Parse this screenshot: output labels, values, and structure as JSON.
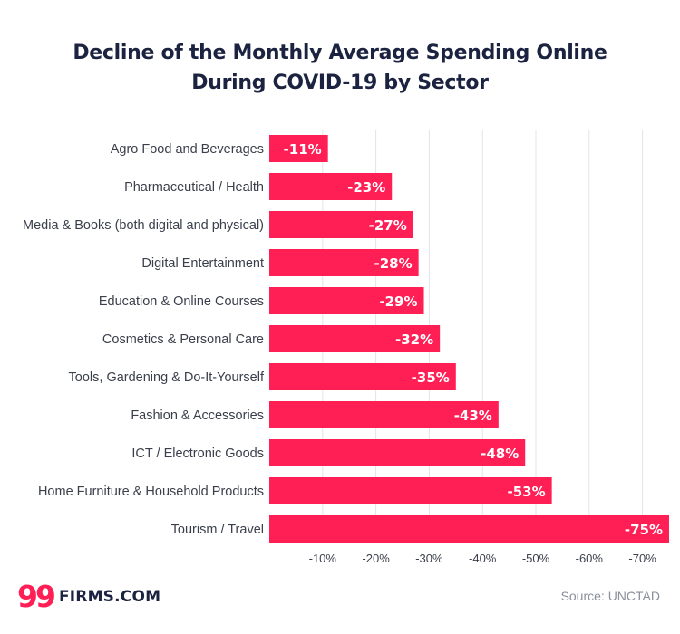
{
  "chart_data": {
    "type": "bar",
    "orientation": "horizontal",
    "title_lines": [
      "Decline of the Monthly Average Spending Online",
      "During COVID-19 by Sector"
    ],
    "categories": [
      "Agro Food and Beverages",
      "Pharmaceutical / Health",
      "Media & Books (both digital and physical)",
      "Digital Entertainment",
      "Education & Online Courses",
      "Cosmetics & Personal Care",
      "Tools, Gardening & Do-It-Yourself",
      "Fashion & Accessories",
      "ICT / Electronic Goods",
      "Home Furniture & Household Products",
      "Tourism / Travel"
    ],
    "values": [
      -11,
      -23,
      -27,
      -28,
      -29,
      -32,
      -35,
      -43,
      -48,
      -53,
      -75
    ],
    "data_labels": [
      "-11%",
      "-23%",
      "-27%",
      "-28%",
      "-29%",
      "-32%",
      "-35%",
      "-43%",
      "-48%",
      "-53%",
      "-75%"
    ],
    "x_ticks": [
      -10,
      -20,
      -30,
      -40,
      -50,
      -60,
      -70
    ],
    "x_tick_labels": [
      "-10%",
      "-20%",
      "-30%",
      "-40%",
      "-50%",
      "-60%",
      "-70%"
    ],
    "xlim": [
      0,
      -75
    ],
    "grid": "vertical",
    "colors": {
      "bar": "#ff1f55",
      "bar_label": "#ffffff",
      "grid": "#e3e4e8",
      "title": "#1b2340",
      "category": "#3a3f4b",
      "tick": "#3a3f4b"
    }
  },
  "brand": {
    "mark": "99",
    "name": "FIRMS.COM",
    "color": "#ff1f55"
  },
  "source": "Source: UNCTAD"
}
